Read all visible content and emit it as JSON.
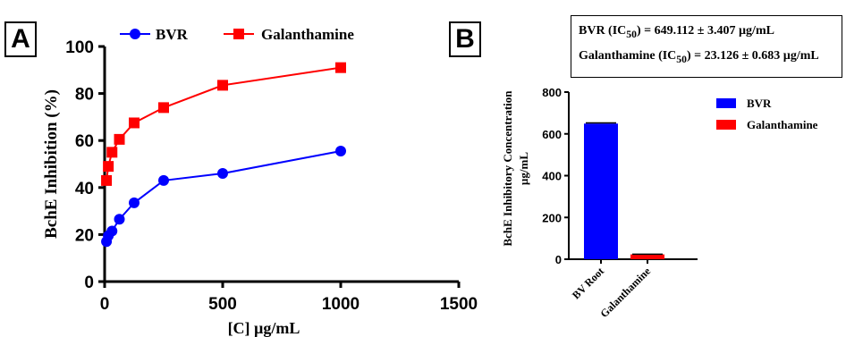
{
  "panel_a": {
    "panel_label": "A",
    "legend": {
      "bvr": "BVR",
      "galanthamine": "Galanthamine"
    }
  },
  "panel_b": {
    "panel_label": "B",
    "ic50": {
      "bvr_name": "BVR (IC",
      "bvr_value": ") = 649.112 ± 3.407 µg/mL",
      "gal_name": "Galanthamine (IC",
      "gal_value": ") = 23.126 ± 0.683 µg/mL",
      "subscript": "50"
    },
    "legend": {
      "bvr": "BVR",
      "galanthamine": "Galanthamine"
    }
  },
  "colors": {
    "bvr": "#0000ff",
    "galanthamine": "#ff0000"
  },
  "chart_data": [
    {
      "type": "line",
      "title": "",
      "xlabel": "[C] µg/mL",
      "ylabel": "BchE Inhibition (%)",
      "xlim": [
        0,
        1500
      ],
      "ylim": [
        0,
        100
      ],
      "xticks": [
        0,
        500,
        1000,
        1500
      ],
      "yticks": [
        0,
        20,
        40,
        60,
        80,
        100
      ],
      "grid": false,
      "legend_position": "top",
      "series": [
        {
          "name": "BVR",
          "marker": "circle",
          "x": [
            7.8,
            15.6,
            31.25,
            62.5,
            125,
            250,
            500,
            1000
          ],
          "y": [
            17,
            19.5,
            21.5,
            26.5,
            33.5,
            43,
            46,
            55.5
          ]
        },
        {
          "name": "Galanthamine",
          "marker": "square",
          "x": [
            7.8,
            15.6,
            31.25,
            62.5,
            125,
            250,
            500,
            1000
          ],
          "y": [
            43,
            49,
            55,
            60.5,
            67.5,
            74,
            83.5,
            91
          ]
        }
      ]
    },
    {
      "type": "bar",
      "title": "",
      "xlabel": "",
      "ylabel": "BchE Inhibitory Concentration µg/mL",
      "categories": [
        "BV Root",
        "Galanthamine"
      ],
      "values": [
        649.112,
        23.126
      ],
      "errors": [
        3.407,
        0.683
      ],
      "ylim": [
        0,
        800
      ],
      "yticks": [
        0,
        200,
        400,
        600,
        800
      ],
      "grid": false,
      "legend_position": "right",
      "series_names": [
        "BVR",
        "Galanthamine"
      ]
    }
  ]
}
